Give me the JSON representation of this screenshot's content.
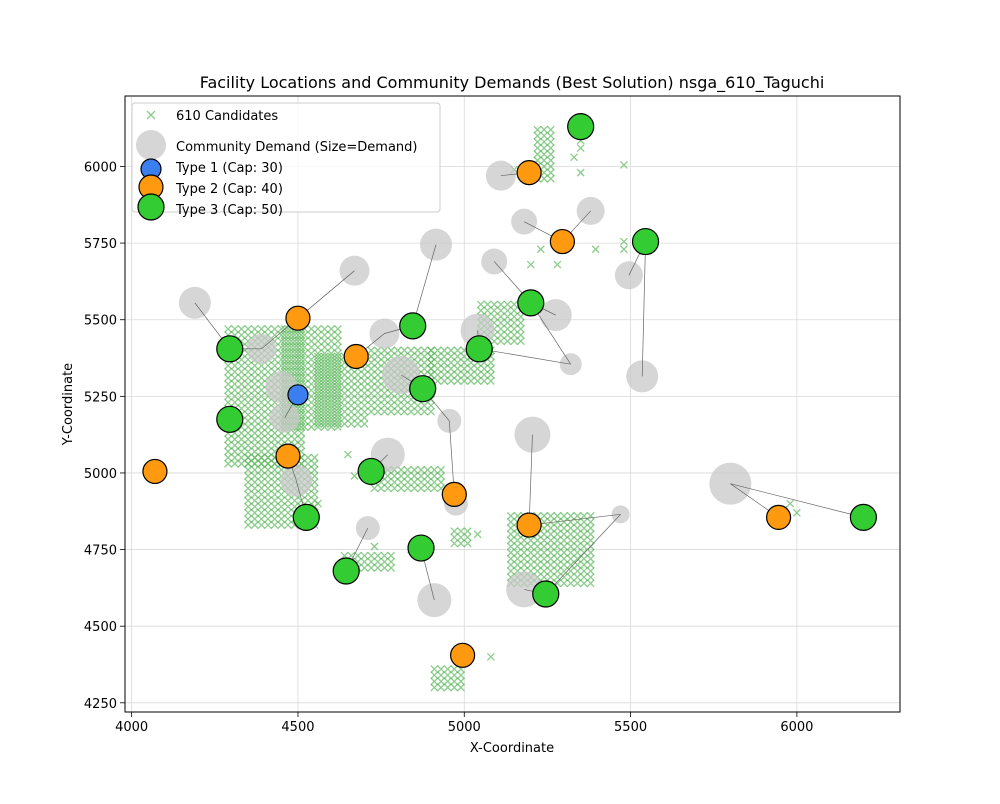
{
  "chart_data": {
    "type": "scatter",
    "title": "Facility Locations and Community Demands (Best Solution) nsga_610_Taguchi",
    "xlabel": "X-Coordinate",
    "ylabel": "Y-Coordinate",
    "xlim": [
      3980,
      6310
    ],
    "ylim": [
      4220,
      6230
    ],
    "xticks": [
      4000,
      4500,
      5000,
      5500,
      6000
    ],
    "yticks": [
      4250,
      4500,
      4750,
      5000,
      5250,
      5500,
      5750,
      6000
    ],
    "grid": true,
    "legend_position": "top-left",
    "colors": {
      "candidate": "#5cb85c",
      "demand": "#c8c8c8",
      "type1": "#3a7ef0",
      "type2": "#ff9a10",
      "type3": "#33cc33",
      "link": "#666666"
    },
    "legend": [
      {
        "label": "610 Candidates",
        "kind": "candidate"
      },
      {
        "label": "Community Demand (Size=Demand)",
        "kind": "demand"
      },
      {
        "label": "Type 1 (Cap: 30)",
        "kind": "type1"
      },
      {
        "label": "Type 2 (Cap: 40)",
        "kind": "type2"
      },
      {
        "label": "Type 3 (Cap: 50)",
        "kind": "type3"
      }
    ],
    "candidate_regions": [
      {
        "x": [
          4290,
          4520
        ],
        "y": [
          5030,
          5470
        ],
        "step": 20
      },
      {
        "x": [
          4350,
          4560
        ],
        "y": [
          4830,
          5050
        ],
        "step": 20
      },
      {
        "x": [
          4460,
          4620
        ],
        "y": [
          5150,
          5480
        ],
        "step": 20
      },
      {
        "x": [
          4560,
          4700
        ],
        "y": [
          5160,
          5380
        ],
        "step": 20
      },
      {
        "x": [
          4720,
          4900
        ],
        "y": [
          5200,
          5400
        ],
        "step": 20
      },
      {
        "x": [
          4900,
          5080
        ],
        "y": [
          5300,
          5400
        ],
        "step": 20
      },
      {
        "x": [
          4730,
          4940
        ],
        "y": [
          4950,
          5010
        ],
        "step": 20
      },
      {
        "x": [
          4640,
          4790
        ],
        "y": [
          4690,
          4730
        ],
        "step": 20
      },
      {
        "x": [
          4910,
          4990
        ],
        "y": [
          4300,
          4360
        ],
        "step": 20
      },
      {
        "x": [
          5140,
          5380
        ],
        "y": [
          4640,
          4860
        ],
        "step": 20
      },
      {
        "x": [
          5220,
          5260
        ],
        "y": [
          5960,
          6130
        ],
        "step": 20
      },
      {
        "x": [
          5050,
          5170
        ],
        "y": [
          5430,
          5560
        ],
        "step": 20
      },
      {
        "x": [
          4970,
          5010
        ],
        "y": [
          4770,
          4810
        ],
        "step": 20
      }
    ],
    "candidate_points": [
      {
        "x": 5480,
        "y": 6005
      },
      {
        "x": 5395,
        "y": 5730
      },
      {
        "x": 5480,
        "y": 5755
      },
      {
        "x": 5480,
        "y": 5730
      },
      {
        "x": 5230,
        "y": 5730
      },
      {
        "x": 5200,
        "y": 5680
      },
      {
        "x": 5280,
        "y": 5680
      },
      {
        "x": 5350,
        "y": 5980
      },
      {
        "x": 5350,
        "y": 6060
      },
      {
        "x": 5350,
        "y": 6085
      },
      {
        "x": 5330,
        "y": 6030
      },
      {
        "x": 5150,
        "y": 5990
      },
      {
        "x": 5940,
        "y": 4840
      },
      {
        "x": 5960,
        "y": 4880
      },
      {
        "x": 5980,
        "y": 4900
      },
      {
        "x": 6000,
        "y": 4870
      },
      {
        "x": 5970,
        "y": 4850
      },
      {
        "x": 5040,
        "y": 4800
      },
      {
        "x": 5010,
        "y": 4400
      },
      {
        "x": 5080,
        "y": 4400
      },
      {
        "x": 4730,
        "y": 4760
      },
      {
        "x": 4560,
        "y": 4900
      },
      {
        "x": 4650,
        "y": 5060
      },
      {
        "x": 4670,
        "y": 4990
      },
      {
        "x": 4880,
        "y": 4770
      },
      {
        "x": 4840,
        "y": 4750
      }
    ],
    "demands": [
      {
        "x": 4190,
        "y": 5555,
        "size": 16
      },
      {
        "x": 4390,
        "y": 5405,
        "size": 15
      },
      {
        "x": 4450,
        "y": 5280,
        "size": 16
      },
      {
        "x": 4460,
        "y": 5180,
        "size": 15
      },
      {
        "x": 4495,
        "y": 4975,
        "size": 16
      },
      {
        "x": 4670,
        "y": 5660,
        "size": 15
      },
      {
        "x": 4760,
        "y": 5455,
        "size": 15
      },
      {
        "x": 4810,
        "y": 5320,
        "size": 19
      },
      {
        "x": 4770,
        "y": 5060,
        "size": 17
      },
      {
        "x": 4710,
        "y": 4820,
        "size": 12
      },
      {
        "x": 4915,
        "y": 5745,
        "size": 16
      },
      {
        "x": 4955,
        "y": 5170,
        "size": 12
      },
      {
        "x": 4975,
        "y": 4900,
        "size": 12
      },
      {
        "x": 4910,
        "y": 4585,
        "size": 17
      },
      {
        "x": 5040,
        "y": 5465,
        "size": 17
      },
      {
        "x": 5110,
        "y": 5970,
        "size": 15
      },
      {
        "x": 5090,
        "y": 5690,
        "size": 13
      },
      {
        "x": 5180,
        "y": 5820,
        "size": 13
      },
      {
        "x": 5380,
        "y": 5855,
        "size": 14
      },
      {
        "x": 5275,
        "y": 5515,
        "size": 16
      },
      {
        "x": 5320,
        "y": 5355,
        "size": 11
      },
      {
        "x": 5205,
        "y": 5125,
        "size": 18
      },
      {
        "x": 5180,
        "y": 4620,
        "size": 18
      },
      {
        "x": 5470,
        "y": 4865,
        "size": 9
      },
      {
        "x": 5495,
        "y": 5645,
        "size": 14
      },
      {
        "x": 5535,
        "y": 5315,
        "size": 16
      },
      {
        "x": 5800,
        "y": 4965,
        "size": 21
      }
    ],
    "facilities": [
      {
        "x": 4070,
        "y": 5005,
        "type": 2
      },
      {
        "x": 4295,
        "y": 5405,
        "type": 3
      },
      {
        "x": 4295,
        "y": 5175,
        "type": 3
      },
      {
        "x": 4500,
        "y": 5505,
        "type": 2
      },
      {
        "x": 4500,
        "y": 5255,
        "type": 1
      },
      {
        "x": 4470,
        "y": 5055,
        "type": 2
      },
      {
        "x": 4525,
        "y": 4855,
        "type": 3
      },
      {
        "x": 4675,
        "y": 5380,
        "type": 2
      },
      {
        "x": 4720,
        "y": 5005,
        "type": 3
      },
      {
        "x": 4845,
        "y": 5480,
        "type": 3
      },
      {
        "x": 4875,
        "y": 5275,
        "type": 3
      },
      {
        "x": 4870,
        "y": 4755,
        "type": 3
      },
      {
        "x": 4645,
        "y": 4680,
        "type": 3
      },
      {
        "x": 4970,
        "y": 4930,
        "type": 2
      },
      {
        "x": 5045,
        "y": 5405,
        "type": 3
      },
      {
        "x": 4995,
        "y": 4405,
        "type": 2
      },
      {
        "x": 5195,
        "y": 5980,
        "type": 2
      },
      {
        "x": 5200,
        "y": 5555,
        "type": 3
      },
      {
        "x": 5195,
        "y": 4830,
        "type": 2
      },
      {
        "x": 5245,
        "y": 4605,
        "type": 3
      },
      {
        "x": 5295,
        "y": 5755,
        "type": 2
      },
      {
        "x": 5350,
        "y": 6130,
        "type": 3
      },
      {
        "x": 5545,
        "y": 5755,
        "type": 3
      },
      {
        "x": 5945,
        "y": 4855,
        "type": 2
      },
      {
        "x": 6200,
        "y": 4855,
        "type": 3
      }
    ],
    "links": [
      {
        "from": [
          4190,
          5555
        ],
        "to": [
          4295,
          5405
        ]
      },
      {
        "from": [
          4390,
          5405
        ],
        "to": [
          4295,
          5405
        ]
      },
      {
        "from": [
          4390,
          5405
        ],
        "to": [
          4500,
          5505
        ]
      },
      {
        "from": [
          4670,
          5660
        ],
        "to": [
          4500,
          5505
        ]
      },
      {
        "from": [
          4760,
          5455
        ],
        "to": [
          4675,
          5380
        ]
      },
      {
        "from": [
          4760,
          5455
        ],
        "to": [
          4845,
          5480
        ]
      },
      {
        "from": [
          4915,
          5745
        ],
        "to": [
          4845,
          5480
        ]
      },
      {
        "from": [
          4810,
          5320
        ],
        "to": [
          4875,
          5275
        ]
      },
      {
        "from": [
          4875,
          5275
        ],
        "to": [
          4955,
          5170
        ]
      },
      {
        "from": [
          4955,
          5170
        ],
        "to": [
          4970,
          4930
        ]
      },
      {
        "from": [
          4770,
          5060
        ],
        "to": [
          4720,
          5005
        ]
      },
      {
        "from": [
          4710,
          4820
        ],
        "to": [
          4645,
          4680
        ]
      },
      {
        "from": [
          4910,
          4585
        ],
        "to": [
          4870,
          4755
        ]
      },
      {
        "from": [
          4460,
          5180
        ],
        "to": [
          4500,
          5255
        ]
      },
      {
        "from": [
          4495,
          4975
        ],
        "to": [
          4525,
          4855
        ]
      },
      {
        "from": [
          4470,
          5055
        ],
        "to": [
          4495,
          4975
        ]
      },
      {
        "from": [
          5040,
          5465
        ],
        "to": [
          5045,
          5405
        ]
      },
      {
        "from": [
          5045,
          5405
        ],
        "to": [
          5320,
          5355
        ]
      },
      {
        "from": [
          5090,
          5690
        ],
        "to": [
          5200,
          5555
        ]
      },
      {
        "from": [
          5200,
          5555
        ],
        "to": [
          5275,
          5515
        ]
      },
      {
        "from": [
          5200,
          5555
        ],
        "to": [
          5320,
          5355
        ]
      },
      {
        "from": [
          5180,
          5820
        ],
        "to": [
          5295,
          5755
        ]
      },
      {
        "from": [
          5380,
          5855
        ],
        "to": [
          5295,
          5755
        ]
      },
      {
        "from": [
          5110,
          5970
        ],
        "to": [
          5195,
          5980
        ]
      },
      {
        "from": [
          5205,
          5125
        ],
        "to": [
          5195,
          4830
        ]
      },
      {
        "from": [
          5195,
          4830
        ],
        "to": [
          5470,
          4865
        ]
      },
      {
        "from": [
          5470,
          4865
        ],
        "to": [
          5245,
          4605
        ]
      },
      {
        "from": [
          5180,
          4620
        ],
        "to": [
          5245,
          4605
        ]
      },
      {
        "from": [
          5495,
          5645
        ],
        "to": [
          5545,
          5755
        ]
      },
      {
        "from": [
          5535,
          5315
        ],
        "to": [
          5545,
          5755
        ]
      },
      {
        "from": [
          5800,
          4965
        ],
        "to": [
          5945,
          4855
        ]
      },
      {
        "from": [
          5800,
          4965
        ],
        "to": [
          6200,
          4855
        ]
      }
    ]
  }
}
